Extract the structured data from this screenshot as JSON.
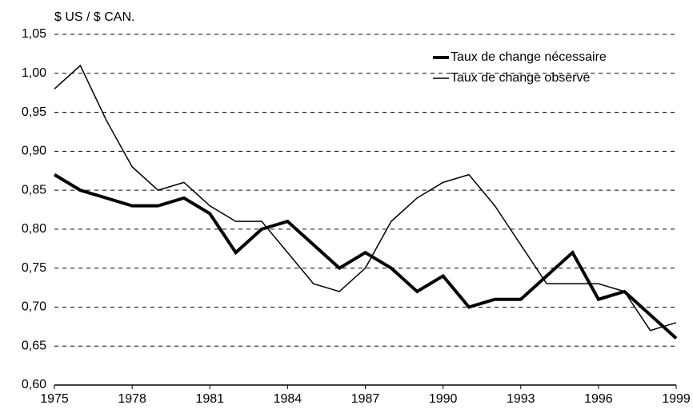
{
  "chart_data": {
    "type": "line",
    "y_label": "$ US / $ CAN.",
    "x": [
      1975,
      1976,
      1977,
      1978,
      1979,
      1980,
      1981,
      1982,
      1983,
      1984,
      1985,
      1986,
      1987,
      1988,
      1989,
      1990,
      1991,
      1992,
      1993,
      1994,
      1995,
      1996,
      1997,
      1998,
      1999
    ],
    "series": [
      {
        "name": "Taux de change nécessaire",
        "color": "#000000",
        "width": 4,
        "values": [
          0.87,
          0.85,
          0.84,
          0.83,
          0.83,
          0.84,
          0.82,
          0.77,
          0.8,
          0.81,
          0.78,
          0.75,
          0.77,
          0.75,
          0.72,
          0.74,
          0.7,
          0.71,
          0.71,
          0.74,
          0.77,
          0.71,
          0.72,
          0.69,
          0.66
        ]
      },
      {
        "name": "Taux de change observé",
        "color": "#000000",
        "width": 1.5,
        "values": [
          0.98,
          1.01,
          0.94,
          0.88,
          0.85,
          0.86,
          0.83,
          0.81,
          0.81,
          0.77,
          0.73,
          0.72,
          0.75,
          0.81,
          0.84,
          0.86,
          0.87,
          0.83,
          0.78,
          0.73,
          0.73,
          0.73,
          0.72,
          0.67,
          0.68
        ]
      }
    ],
    "xlim": [
      1975,
      1999
    ],
    "xticks": [
      1975,
      1978,
      1981,
      1984,
      1987,
      1990,
      1993,
      1996,
      1999
    ],
    "ylim": [
      0.6,
      1.05
    ],
    "yticks": [
      {
        "value": 0.6,
        "label": "0,60"
      },
      {
        "value": 0.65,
        "label": "0,65"
      },
      {
        "value": 0.7,
        "label": "0,70"
      },
      {
        "value": 0.75,
        "label": "0,75"
      },
      {
        "value": 0.8,
        "label": "0,80"
      },
      {
        "value": 0.85,
        "label": "0,85"
      },
      {
        "value": 0.9,
        "label": "0,90"
      },
      {
        "value": 0.95,
        "label": "0,95"
      },
      {
        "value": 1.0,
        "label": "1,00"
      },
      {
        "value": 1.05,
        "label": "1,05"
      }
    ],
    "grid": true,
    "legend": "upper right"
  }
}
